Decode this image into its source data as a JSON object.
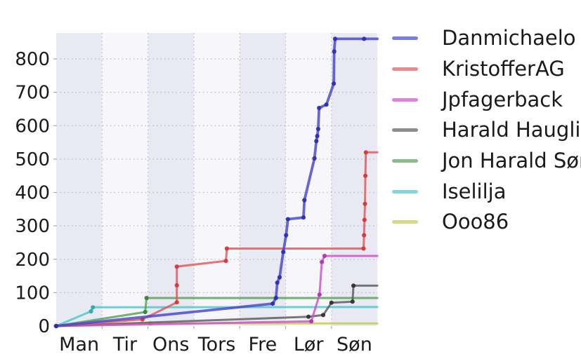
{
  "chart_data": {
    "type": "line",
    "title": "",
    "xlabel": "",
    "ylabel": "",
    "x_axis": {
      "tick_labels": [
        "Man",
        "Tir",
        "Ons",
        "Tors",
        "Fre",
        "Lør",
        "Søn"
      ],
      "range_days": [
        0,
        7
      ],
      "grid": "dotted-vertical-at-day-boundaries"
    },
    "y_axis": {
      "tick_values": [
        0,
        100,
        200,
        300,
        400,
        500,
        600,
        700,
        800
      ],
      "range": [
        0,
        880
      ],
      "grid": "dotted-horizontal-every-100"
    },
    "plot_bands": [
      "#e9e9f4",
      "#f7f7fb"
    ],
    "grid_color": "#b8b8c2",
    "legend_position": "right-outside",
    "series": [
      {
        "name": "Danmichaelo",
        "color": "#4646cc",
        "marker_color": "#2b2bb0",
        "line_width": 3.8,
        "final_value": 860,
        "points": [
          [
            0,
            0
          ],
          [
            4.72,
            67
          ],
          [
            4.79,
            84
          ],
          [
            4.82,
            130
          ],
          [
            4.87,
            146
          ],
          [
            4.95,
            222
          ],
          [
            5.01,
            272
          ],
          [
            5.05,
            320
          ],
          [
            5.39,
            325
          ],
          [
            5.41,
            377
          ],
          [
            5.63,
            502
          ],
          [
            5.67,
            554
          ],
          [
            5.69,
            569
          ],
          [
            5.71,
            590
          ],
          [
            5.73,
            653
          ],
          [
            5.89,
            663
          ],
          [
            6.05,
            726
          ],
          [
            6.06,
            822
          ],
          [
            6.08,
            860
          ],
          [
            6.71,
            860
          ],
          [
            7,
            860
          ]
        ]
      },
      {
        "name": "KristofferAG",
        "color": "#df5858",
        "marker_color": "#cf3535",
        "line_width": 3,
        "final_value": 520,
        "points": [
          [
            0,
            0
          ],
          [
            1.88,
            20
          ],
          [
            2.63,
            71
          ],
          [
            2.63,
            122
          ],
          [
            2.63,
            178
          ],
          [
            3.7,
            195
          ],
          [
            3.72,
            232
          ],
          [
            6.7,
            232
          ],
          [
            6.71,
            272
          ],
          [
            6.72,
            318
          ],
          [
            6.73,
            366
          ],
          [
            6.74,
            450
          ],
          [
            6.75,
            520
          ],
          [
            7,
            520
          ]
        ]
      },
      {
        "name": "Jpfagerback",
        "color": "#cc4fcc",
        "marker_color": "#b32fb3",
        "line_width": 3,
        "final_value": 210,
        "points": [
          [
            0,
            0
          ],
          [
            5.56,
            14
          ],
          [
            5.74,
            94
          ],
          [
            5.79,
            192
          ],
          [
            5.85,
            210
          ],
          [
            7,
            210
          ]
        ]
      },
      {
        "name": "Harald Haugli",
        "color": "#5c5c5c",
        "marker_color": "#2e2e2e",
        "line_width": 3,
        "final_value": 121,
        "points": [
          [
            0,
            0
          ],
          [
            5.5,
            28
          ],
          [
            5.82,
            33
          ],
          [
            6.0,
            70
          ],
          [
            6.46,
            73
          ],
          [
            6.48,
            121
          ],
          [
            7,
            121
          ]
        ]
      },
      {
        "name": "Jon Harald Sør",
        "color": "#54a054",
        "marker_color": "#357f35",
        "line_width": 3,
        "final_value": 84,
        "points": [
          [
            0,
            0
          ],
          [
            1.94,
            42
          ],
          [
            1.97,
            84
          ],
          [
            7,
            84
          ]
        ]
      },
      {
        "name": "Iselilja",
        "color": "#4cc9c9",
        "marker_color": "#29a8a8",
        "line_width": 3,
        "final_value": 57,
        "points": [
          [
            0,
            0
          ],
          [
            0.76,
            44
          ],
          [
            0.8,
            56
          ],
          [
            7,
            57
          ]
        ]
      },
      {
        "name": "Ooo86",
        "color": "#c9c94c",
        "marker_color": "#a8a82e",
        "line_width": 3,
        "final_value": 8,
        "points": [
          [
            0,
            0
          ],
          [
            2.05,
            8
          ],
          [
            7,
            8
          ]
        ]
      }
    ]
  }
}
